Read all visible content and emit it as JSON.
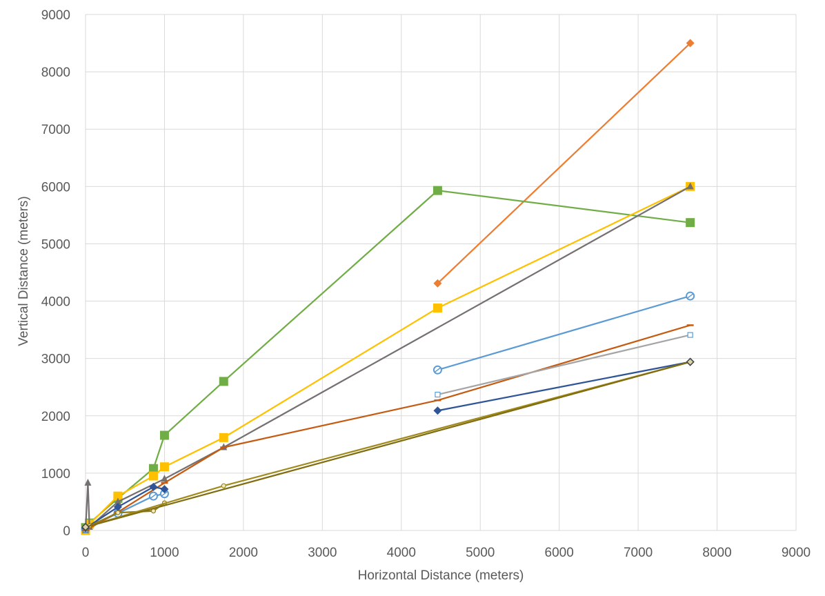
{
  "chart_data": {
    "type": "scatter",
    "title": "",
    "xlabel": "Horizontal Distance (meters)",
    "ylabel": "Vertical Distance (meters)",
    "xlim": [
      0,
      9000
    ],
    "ylim": [
      0,
      9000
    ],
    "xticks": [
      "0",
      "1000",
      "2000",
      "3000",
      "4000",
      "5000",
      "6000",
      "7000",
      "8000",
      "9000"
    ],
    "yticks": [
      "0",
      "1000",
      "2000",
      "3000",
      "4000",
      "5000",
      "6000",
      "7000",
      "8000",
      "9000"
    ],
    "grid": true,
    "legend": "none",
    "series": [
      {
        "color": "#ed7d31",
        "marker": "diamond",
        "points": [
          [
            4460,
            4310
          ],
          [
            7660,
            8500
          ]
        ]
      },
      {
        "color": "#70ad47",
        "marker": "square",
        "points": [
          [
            0,
            50
          ],
          [
            50,
            130
          ],
          [
            410,
            560
          ],
          [
            860,
            1080
          ],
          [
            1000,
            1660
          ],
          [
            1750,
            2600
          ],
          [
            4460,
            5930
          ],
          [
            7660,
            5370
          ]
        ]
      },
      {
        "color": "#ffc000",
        "marker": "square",
        "points": [
          [
            0,
            0
          ],
          [
            50,
            110
          ],
          [
            410,
            600
          ],
          [
            860,
            950
          ],
          [
            1000,
            1110
          ],
          [
            1750,
            1620
          ],
          [
            4460,
            3880
          ],
          [
            7660,
            6000
          ]
        ]
      },
      {
        "color": "#767171",
        "marker": "triangle",
        "points": [
          [
            0,
            0
          ],
          [
            30,
            830
          ],
          [
            50,
            60
          ],
          [
            410,
            500
          ],
          [
            1000,
            900
          ],
          [
            1750,
            1450
          ],
          [
            7660,
            6000
          ]
        ]
      },
      {
        "color": "#5b9bd5",
        "marker": "circle",
        "points": [
          [
            0,
            30
          ],
          [
            410,
            300
          ],
          [
            860,
            600
          ],
          [
            1000,
            640
          ]
        ]
      },
      {
        "color": "#5b9bd5",
        "marker": "circle",
        "points": [
          [
            4460,
            2800
          ],
          [
            7660,
            4090
          ]
        ]
      },
      {
        "color": "#c55a11",
        "marker": "dash",
        "points": [
          [
            0,
            0
          ],
          [
            410,
            320
          ],
          [
            1000,
            830
          ],
          [
            1750,
            1450
          ],
          [
            4460,
            2270
          ],
          [
            7660,
            3580
          ]
        ]
      },
      {
        "color": "#a5a5a5",
        "marker": "square-open",
        "points": [
          [
            4460,
            2370
          ],
          [
            7660,
            3410
          ]
        ]
      },
      {
        "color": "#2f5597",
        "marker": "diamond",
        "points": [
          [
            0,
            40
          ],
          [
            410,
            410
          ],
          [
            860,
            760
          ],
          [
            1000,
            720
          ]
        ]
      },
      {
        "color": "#2f5597",
        "marker": "diamond",
        "points": [
          [
            4460,
            2090
          ],
          [
            7660,
            2940
          ]
        ]
      },
      {
        "color": "#8f7c16",
        "marker": "circle-small",
        "points": [
          [
            0,
            30
          ],
          [
            50,
            80
          ],
          [
            410,
            310
          ],
          [
            860,
            340
          ],
          [
            1000,
            480
          ]
        ]
      },
      {
        "color": "#a08a1c",
        "marker": "circle-small",
        "points": [
          [
            0,
            60
          ],
          [
            1750,
            780
          ],
          [
            7660,
            2940
          ]
        ]
      },
      {
        "color": "#806d10",
        "marker": "diamond-open",
        "points": [
          [
            0,
            60
          ],
          [
            7660,
            2940
          ]
        ]
      }
    ]
  }
}
